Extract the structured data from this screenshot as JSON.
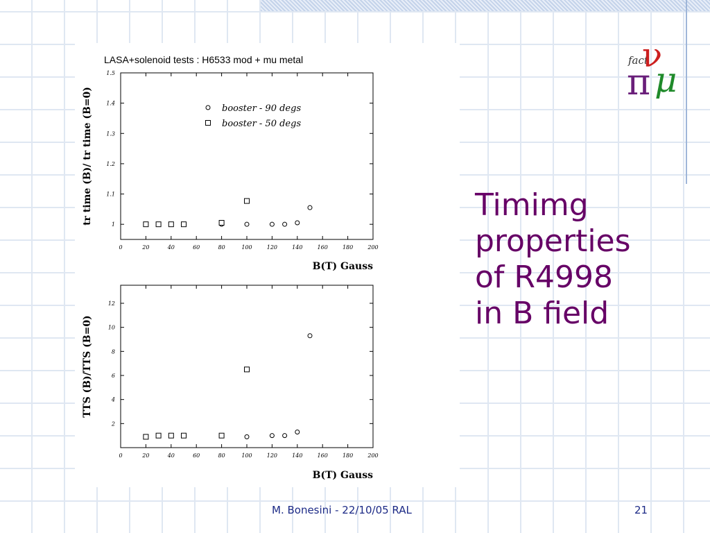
{
  "slide": {
    "title_lines": [
      "Timimg",
      "properties",
      "of R4998",
      "in B field"
    ],
    "footer_text": "M. Bonesini - 22/10/05 RAL",
    "page_number": "21",
    "logo_letters": {
      "fact": "fact",
      "nu": "ν",
      "pi": "π",
      "mu": "μ"
    },
    "colors": {
      "title": "#660066",
      "footer": "#1c2a86",
      "grid": "#dfe7f2",
      "logo_nu": "#cc1f1f",
      "logo_pi": "#6a1f7a",
      "logo_mu": "#1f8a2a"
    }
  },
  "chart_data": [
    {
      "type": "scatter",
      "title": "LASA+solenoid  tests  : H6533 mod + mu metal",
      "xlabel": "B(T) Gauss",
      "ylabel": "tr time (B)/ tr time (B=0)",
      "xlim": [
        0,
        200
      ],
      "ylim": [
        0.95,
        1.5
      ],
      "xticks": [
        0,
        20,
        40,
        60,
        80,
        100,
        120,
        140,
        160,
        180,
        200
      ],
      "yticks": [
        1,
        1.1,
        1.2,
        1.3,
        1.4,
        1.5
      ],
      "legend_placement": "top-center",
      "series": [
        {
          "name": "booster - 90 degs",
          "marker": "circle",
          "x": [
            80,
            100,
            120,
            130,
            140,
            150
          ],
          "y": [
            1.0,
            1.0,
            1.0,
            1.0,
            1.005,
            1.055
          ]
        },
        {
          "name": "booster - 50 degs",
          "marker": "square",
          "x": [
            20,
            30,
            40,
            50,
            80,
            100
          ],
          "y": [
            1.0,
            1.0,
            1.0,
            1.0,
            1.005,
            1.077
          ]
        }
      ]
    },
    {
      "type": "scatter",
      "title": "",
      "xlabel": "B(T) Gauss",
      "ylabel": "TTS (B)/TTS (B=0)",
      "xlim": [
        0,
        200
      ],
      "ylim": [
        0,
        13.5
      ],
      "xticks": [
        0,
        20,
        40,
        60,
        80,
        100,
        120,
        140,
        160,
        180,
        200
      ],
      "yticks": [
        2,
        4,
        6,
        8,
        10,
        12
      ],
      "series": [
        {
          "name": "booster - 90 degs",
          "marker": "circle",
          "x": [
            80,
            100,
            120,
            130,
            140,
            150
          ],
          "y": [
            1.0,
            0.9,
            1.0,
            1.0,
            1.3,
            9.3
          ]
        },
        {
          "name": "booster - 50 degs",
          "marker": "square",
          "x": [
            20,
            30,
            40,
            50,
            80,
            100
          ],
          "y": [
            0.9,
            1.0,
            1.0,
            1.0,
            1.0,
            6.5
          ]
        }
      ]
    }
  ]
}
